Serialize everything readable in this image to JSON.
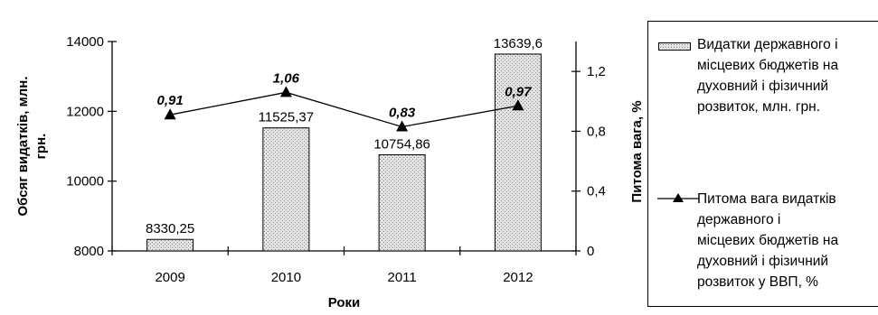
{
  "colors": {
    "bar_fill": "#e2e2e2",
    "bar_dot": "#8c8c8c",
    "line": "#000000"
  },
  "legend": {
    "bar_label": "Видатки державного і\nмісцевих бюджетів на\nдуховний і фізичний\nрозвиток, млн. грн.",
    "line_label": "Питома вага видатків\nдержавного і\nмісцевих бюджетів на\nдуховний і фізичний\nрозвиток у ВВП, %",
    "line_marker": "triangle"
  },
  "chart_data": {
    "type": "bar",
    "categories": [
      "2009",
      "2010",
      "2011",
      "2012"
    ],
    "xlabel": "Роки",
    "ylabel": "Обсяг видатків, млн.\nгрн.",
    "y2label": "Питома вага, %",
    "ylim": [
      8000,
      14000
    ],
    "yticks": [
      8000,
      10000,
      12000,
      14000
    ],
    "y2lim": [
      0,
      1.4
    ],
    "y2ticks": [
      "0",
      "0,4",
      "0,8",
      "1,2"
    ],
    "y2tick_values": [
      0,
      0.4,
      0.8,
      1.2
    ],
    "series": [
      {
        "name": "Видатки державного і місцевих бюджетів на духовний і фізичний розвиток, млн. грн.",
        "type": "bar",
        "axis": "left",
        "values": [
          8330.25,
          11525.37,
          10754.86,
          13639.6
        ],
        "labels": [
          "8330,25",
          "11525,37",
          "10754,86",
          "13639,6"
        ]
      },
      {
        "name": "Питома вага видатків державного і місцевих бюджетів на духовний і фізичний розвиток у ВВП, %",
        "type": "line",
        "axis": "right",
        "values": [
          0.91,
          1.06,
          0.83,
          0.97
        ],
        "labels": [
          "0,91",
          "1,06",
          "0,83",
          "0,97"
        ]
      }
    ],
    "grid": false,
    "legend_position": "right"
  }
}
